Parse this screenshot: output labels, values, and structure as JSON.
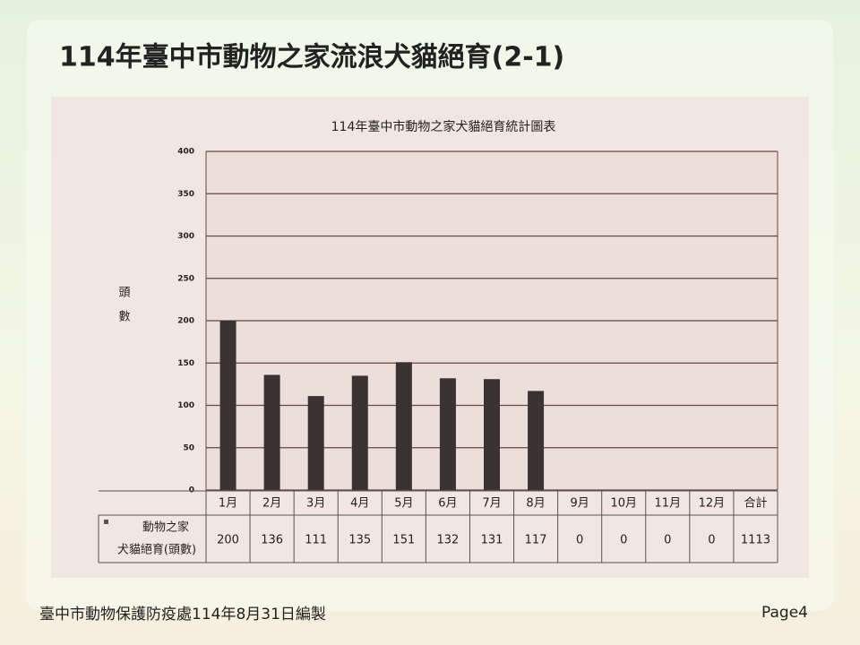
{
  "slide_title": "114年臺中市動物之家流浪犬貓絕育(2-1)",
  "footer": "臺中市動物保護防疫處114年8月31日編製",
  "page": "Page4",
  "chart_data": {
    "type": "bar",
    "title": "114年臺中市動物之家犬貓絕育統計圖表",
    "y_label": [
      "頭",
      "數"
    ],
    "categories": [
      "1月",
      "2月",
      "3月",
      "4月",
      "5月",
      "6月",
      "7月",
      "8月",
      "9月",
      "10月",
      "11月",
      "12月"
    ],
    "legend": [
      "動物之家",
      "犬貓絕育(頭數)"
    ],
    "values": [
      200,
      136,
      111,
      135,
      151,
      132,
      131,
      117,
      0,
      0,
      0,
      0
    ],
    "total": {
      "label": "合計",
      "value": 1113
    },
    "color": "#3b3333",
    "ylim": [
      0,
      400
    ],
    "yticks": [
      0,
      50,
      100,
      150,
      200,
      250,
      300,
      350,
      400
    ],
    "grid": true
  }
}
